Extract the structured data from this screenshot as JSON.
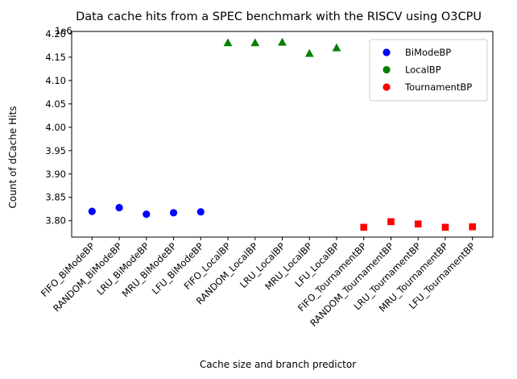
{
  "chart_data": {
    "type": "scatter",
    "title": "Data cache hits from a SPEC benchmark with the RISCV using O3CPU",
    "xlabel": "Cache size and branch predictor",
    "ylabel": "Count of dCache Hits",
    "y_offset_label": "1e6",
    "ylim": [
      3.765,
      4.205
    ],
    "yticks": [
      3.8,
      3.85,
      3.9,
      3.95,
      4.0,
      4.05,
      4.1,
      4.15,
      4.2
    ],
    "ytick_labels": [
      "3.80",
      "3.85",
      "3.90",
      "3.95",
      "4.00",
      "4.05",
      "4.10",
      "4.15",
      "4.20"
    ],
    "categories": [
      "FIFO_BiModeBP",
      "RANDOM_BiModeBP",
      "LRU_BiModeBP",
      "MRU_BiModeBP",
      "LFU_BiModeBP",
      "FIFO_LocalBP",
      "RANDOM_LocalBP",
      "LRU_LocalBP",
      "MRU_LocalBP",
      "LFU_LocalBP",
      "FIFO_TournamentBP",
      "RANDOM_TournamentBP",
      "LRU_TournamentBP",
      "MRU_TournamentBP",
      "LFU_TournamentBP"
    ],
    "series": [
      {
        "name": "BiModeBP",
        "color": "#0000ff",
        "marker": "circle",
        "start": 0,
        "values": [
          3.82,
          3.828,
          3.814,
          3.817,
          3.819
        ]
      },
      {
        "name": "LocalBP",
        "color": "#008000",
        "marker": "triangle",
        "start": 5,
        "values": [
          4.181,
          4.181,
          4.182,
          4.158,
          4.17
        ]
      },
      {
        "name": "TournamentBP",
        "color": "#ff0000",
        "marker": "square",
        "start": 10,
        "values": [
          3.786,
          3.798,
          3.793,
          3.786,
          3.787
        ]
      }
    ],
    "legend": {
      "position": "top-right",
      "marker": "circle"
    },
    "grid": false
  }
}
